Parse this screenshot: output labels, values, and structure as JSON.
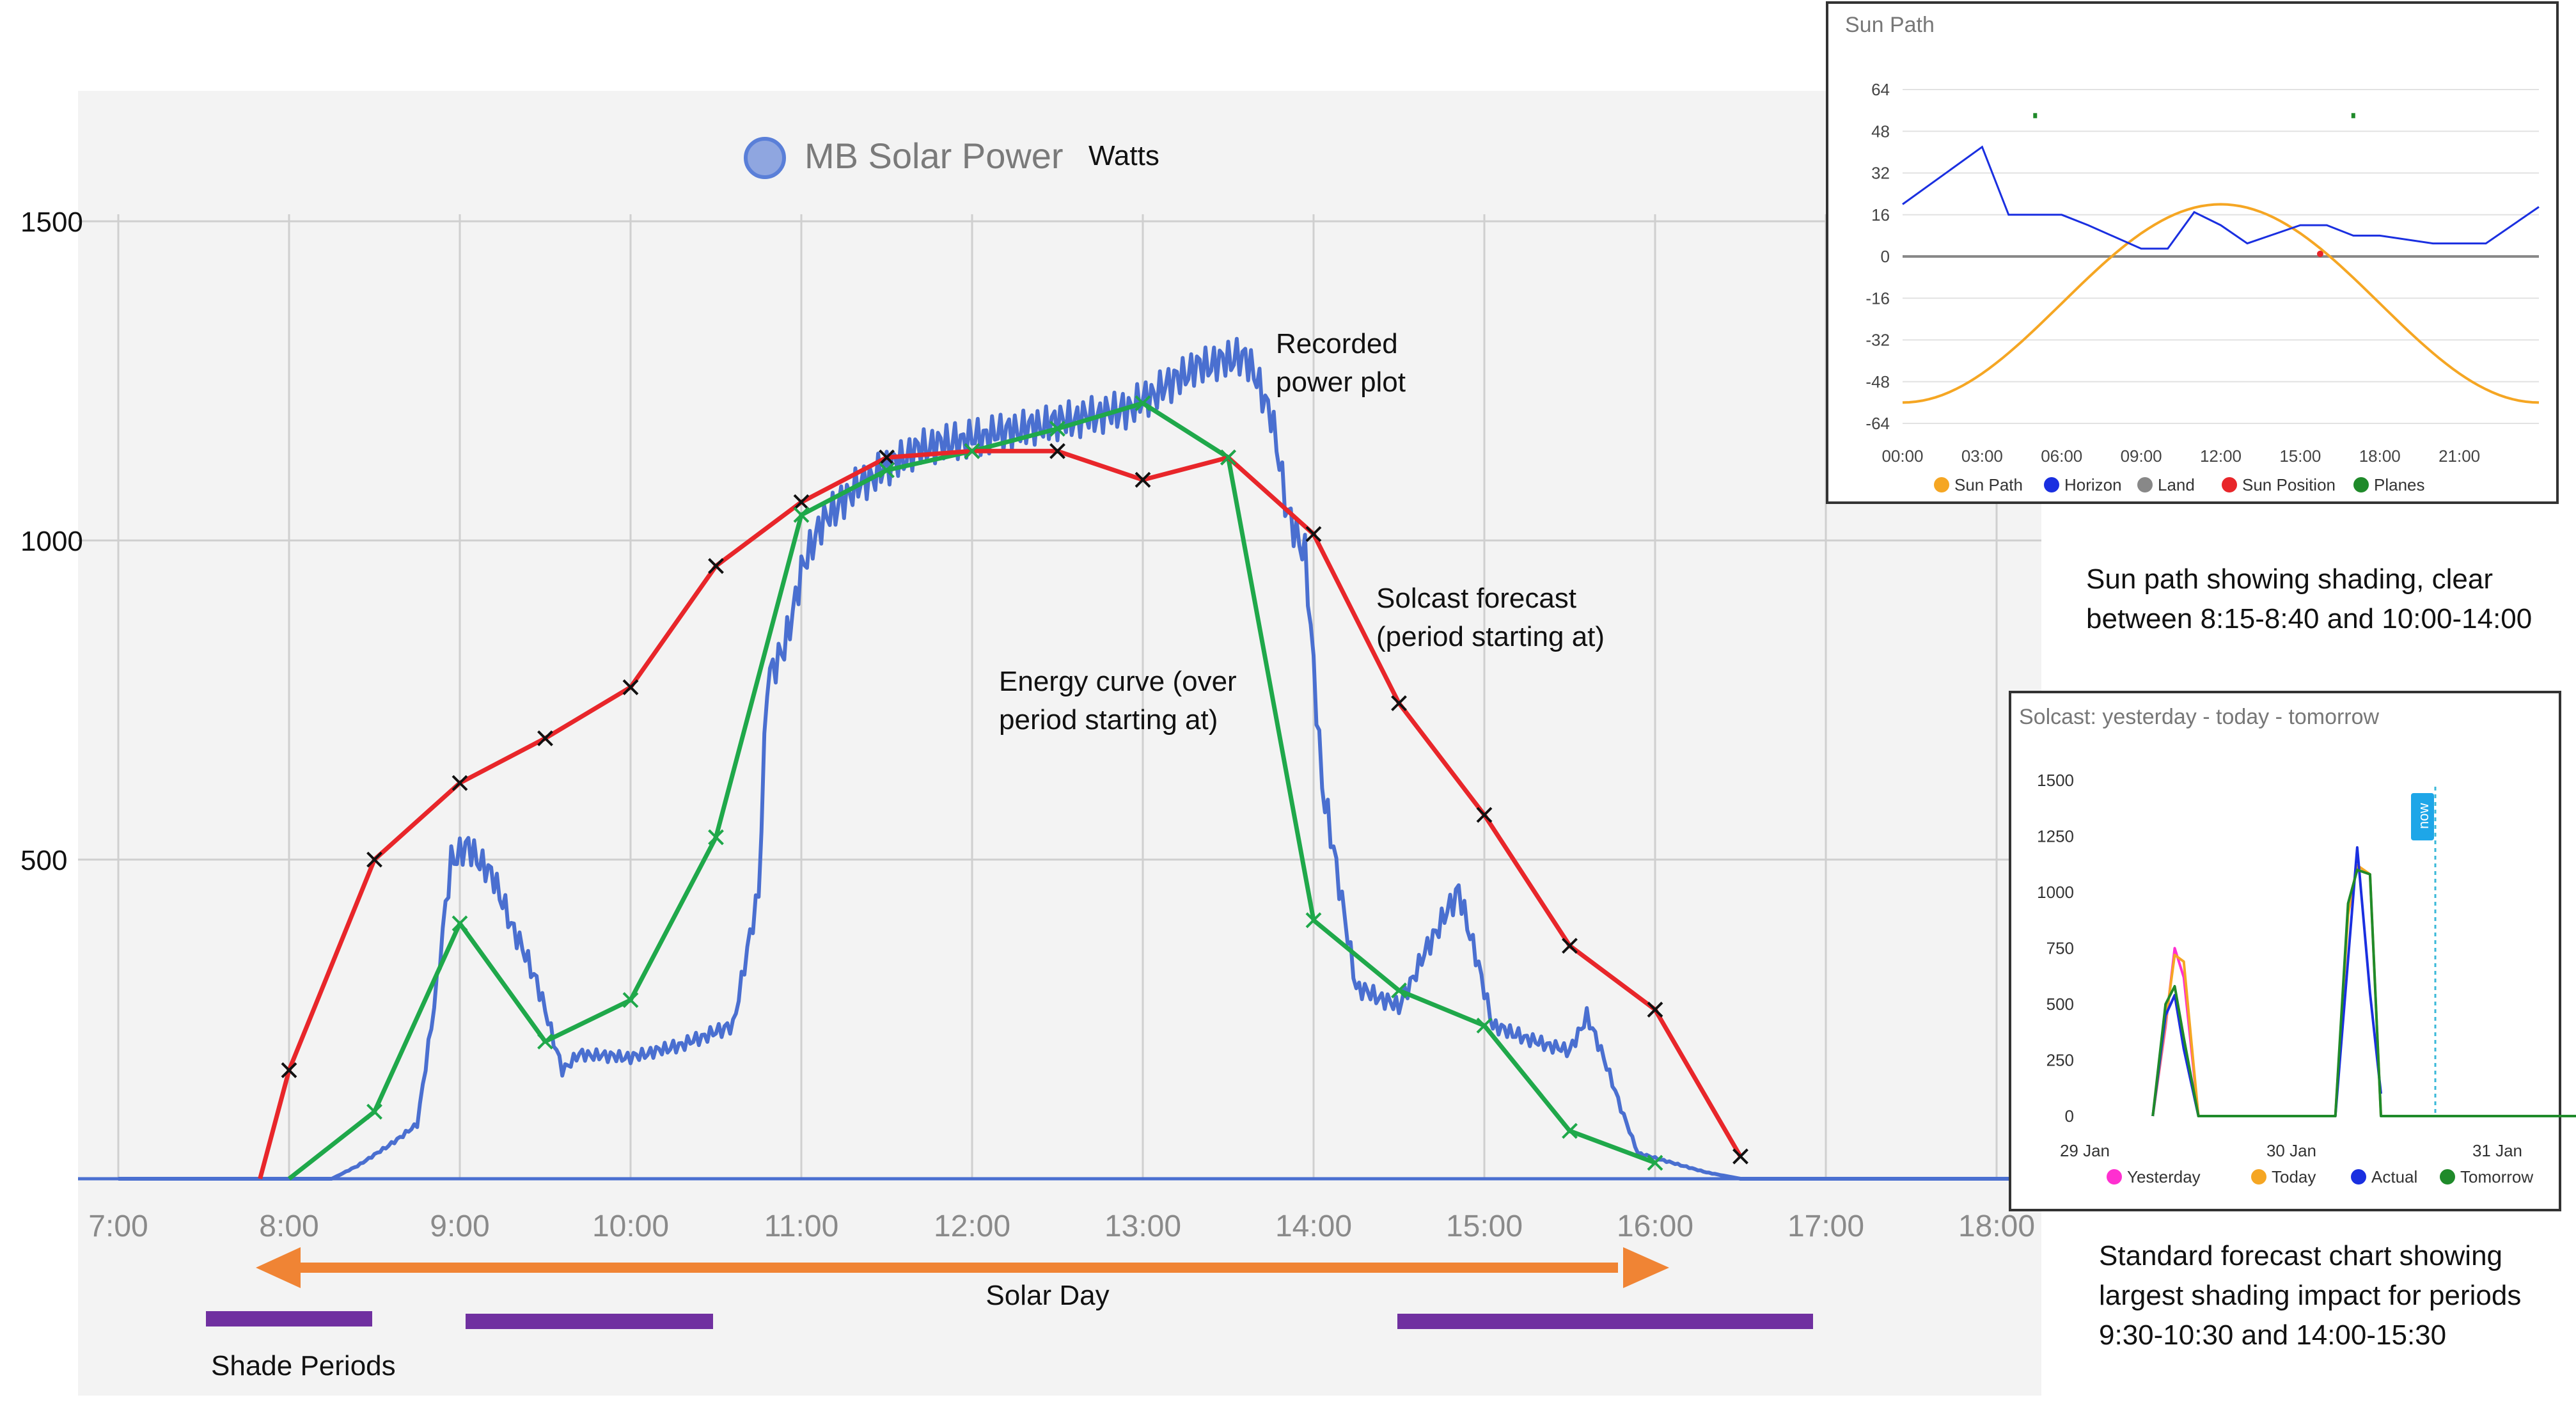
{
  "main_chart": {
    "legend_label": "MB Solar Power",
    "unit_label": "Watts",
    "y_ticks": [
      "1500",
      "1000",
      "500"
    ],
    "x_ticks": [
      "7:00",
      "8:00",
      "9:00",
      "10:00",
      "11:00",
      "12:00",
      "13:00",
      "14:00",
      "15:00",
      "16:00",
      "17:00",
      "18:00"
    ],
    "colors": {
      "recorded": "#4a6fd0",
      "solcast": "#e8262a",
      "energy": "#1fa84a",
      "arrow": "#f08434",
      "shade": "#7030a0",
      "legend_dot": "#8fa6e0"
    }
  },
  "annotations": {
    "recorded": [
      "Recorded",
      "power plot"
    ],
    "solcast": [
      "Solcast forecast",
      "(period starting at)"
    ],
    "energy": [
      "Energy curve (over",
      "period starting at)"
    ],
    "solar_day": "Solar Day",
    "shade_periods": "Shade Periods",
    "sun_path_caption": [
      "Sun path showing shading, clear",
      "between 8:15-8:40 and 10:00-14:00"
    ],
    "forecast_caption": [
      "Standard forecast chart showing",
      "largest shading impact for periods",
      "9:30-10:30 and 14:00-15:30"
    ]
  },
  "sun_path_panel": {
    "title": "Sun Path",
    "y_ticks": [
      "64",
      "48",
      "32",
      "16",
      "0",
      "-16",
      "-32",
      "-48",
      "-64"
    ],
    "x_ticks": [
      "00:00",
      "03:00",
      "06:00",
      "09:00",
      "12:00",
      "15:00",
      "18:00",
      "21:00"
    ],
    "legend": [
      "Sun Path",
      "Horizon",
      "Land",
      "Sun Position",
      "Planes"
    ],
    "colors": [
      "#f5a623",
      "#1a2fe0",
      "#888888",
      "#e8262a",
      "#1f8a2a"
    ]
  },
  "solcast_panel": {
    "title": "Solcast: yesterday - today - tomorrow",
    "y_ticks": [
      "1500",
      "1250",
      "1000",
      "750",
      "500",
      "250",
      "0"
    ],
    "x_ticks": [
      "29 Jan",
      "30 Jan",
      "31 Jan"
    ],
    "now_label": "now",
    "legend": [
      "Yesterday",
      "Today",
      "Actual",
      "Tomorrow"
    ],
    "colors": [
      "#ff2fd0",
      "#f5a623",
      "#1a2fe0",
      "#1f8a2a"
    ]
  },
  "chart_data": [
    {
      "type": "line",
      "title": "MB Solar Power",
      "ylabel": "Watts",
      "ylim": [
        0,
        1600
      ],
      "x_unit": "hour of day",
      "x_range": [
        7,
        18
      ],
      "series": [
        {
          "name": "Solcast forecast (period starting at)",
          "points": [
            [
              7.83,
              0
            ],
            [
              8.0,
              170
            ],
            [
              8.5,
              500
            ],
            [
              9.0,
              620
            ],
            [
              9.5,
              690
            ],
            [
              10.0,
              770
            ],
            [
              10.5,
              960
            ],
            [
              11.0,
              1060
            ],
            [
              11.5,
              1130
            ],
            [
              12.0,
              1140
            ],
            [
              12.5,
              1140
            ],
            [
              13.0,
              1095
            ],
            [
              13.5,
              1130
            ],
            [
              14.0,
              1010
            ],
            [
              14.5,
              745
            ],
            [
              15.0,
              570
            ],
            [
              15.5,
              365
            ],
            [
              16.0,
              265
            ],
            [
              16.5,
              35
            ]
          ]
        },
        {
          "name": "Energy curve (over period starting at)",
          "points": [
            [
              8.0,
              0
            ],
            [
              8.5,
              105
            ],
            [
              9.0,
              400
            ],
            [
              9.5,
              215
            ],
            [
              10.0,
              280
            ],
            [
              10.5,
              535
            ],
            [
              11.0,
              1040
            ],
            [
              11.5,
              1110
            ],
            [
              12.0,
              1140
            ],
            [
              12.5,
              1175
            ],
            [
              13.0,
              1215
            ],
            [
              13.5,
              1130
            ],
            [
              14.0,
              405
            ],
            [
              14.5,
              295
            ],
            [
              15.0,
              240
            ],
            [
              15.5,
              75
            ],
            [
              16.0,
              25
            ]
          ]
        },
        {
          "name": "Recorded power plot",
          "points": [
            [
              7.0,
              0
            ],
            [
              8.25,
              0
            ],
            [
              8.4,
              20
            ],
            [
              8.6,
              55
            ],
            [
              8.75,
              85
            ],
            [
              8.85,
              270
            ],
            [
              8.95,
              500
            ],
            [
              9.05,
              520
            ],
            [
              9.2,
              470
            ],
            [
              9.3,
              400
            ],
            [
              9.45,
              310
            ],
            [
              9.6,
              170
            ],
            [
              9.7,
              195
            ],
            [
              10.0,
              190
            ],
            [
              10.3,
              210
            ],
            [
              10.6,
              240
            ],
            [
              10.75,
              450
            ],
            [
              10.8,
              780
            ],
            [
              10.9,
              830
            ],
            [
              11.0,
              950
            ],
            [
              11.1,
              1020
            ],
            [
              11.3,
              1080
            ],
            [
              11.5,
              1115
            ],
            [
              11.7,
              1145
            ],
            [
              12.0,
              1160
            ],
            [
              12.3,
              1175
            ],
            [
              12.6,
              1190
            ],
            [
              12.9,
              1205
            ],
            [
              13.1,
              1235
            ],
            [
              13.3,
              1270
            ],
            [
              13.6,
              1290
            ],
            [
              13.75,
              1200
            ],
            [
              13.85,
              1040
            ],
            [
              13.95,
              980
            ],
            [
              14.05,
              620
            ],
            [
              14.15,
              460
            ],
            [
              14.25,
              300
            ],
            [
              14.5,
              270
            ],
            [
              14.7,
              380
            ],
            [
              14.85,
              450
            ],
            [
              14.95,
              350
            ],
            [
              15.05,
              240
            ],
            [
              15.3,
              215
            ],
            [
              15.5,
              200
            ],
            [
              15.6,
              255
            ],
            [
              15.7,
              190
            ],
            [
              15.8,
              110
            ],
            [
              15.9,
              40
            ],
            [
              16.1,
              25
            ],
            [
              16.3,
              10
            ],
            [
              16.5,
              0
            ],
            [
              18.2,
              0
            ]
          ]
        }
      ],
      "annotations": {
        "solar_day": [
          7.8,
          16.05
        ],
        "shade_periods": [
          [
            7.5,
            8.5
          ],
          [
            9.05,
            10.5
          ],
          [
            14.5,
            17.0
          ]
        ]
      }
    },
    {
      "type": "line",
      "title": "Sun Path",
      "x_range": [
        0,
        24
      ],
      "ylim": [
        -64,
        64
      ],
      "series": [
        {
          "name": "Sun Path",
          "points": [
            [
              0,
              -56
            ],
            [
              3,
              -48
            ],
            [
              6,
              -16
            ],
            [
              9,
              13
            ],
            [
              11,
              19
            ],
            [
              12,
              20
            ],
            [
              13,
              19
            ],
            [
              15,
              13
            ],
            [
              18,
              -16
            ],
            [
              21,
              -48
            ],
            [
              24,
              -56
            ]
          ]
        },
        {
          "name": "Horizon",
          "points": [
            [
              0,
              20
            ],
            [
              3,
              42
            ],
            [
              4,
              16
            ],
            [
              6,
              16
            ],
            [
              7,
              12
            ],
            [
              9,
              3
            ],
            [
              10,
              3
            ],
            [
              11,
              17
            ],
            [
              12,
              12
            ],
            [
              13,
              5
            ],
            [
              15,
              12
            ],
            [
              16,
              12
            ],
            [
              17,
              8
            ],
            [
              18,
              8
            ],
            [
              20,
              5
            ],
            [
              22,
              5
            ],
            [
              24,
              19
            ]
          ]
        },
        {
          "name": "Land",
          "points": [
            [
              0,
              0
            ],
            [
              24,
              0
            ]
          ]
        },
        {
          "name": "Sun Position",
          "points": [
            [
              15.75,
              1
            ]
          ]
        },
        {
          "name": "Planes",
          "points": [
            [
              5,
              54
            ],
            [
              17,
              54
            ]
          ]
        }
      ]
    },
    {
      "type": "line",
      "title": "Solcast: yesterday - today - tomorrow",
      "x_unit": "day index (0 = 29 Jan)",
      "x_range": [
        0,
        3
      ],
      "ylim": [
        0,
        1500
      ],
      "series": [
        {
          "name": "Yesterday",
          "points": [
            [
              0.33,
              0
            ],
            [
              0.4,
              400
            ],
            [
              0.45,
              750
            ],
            [
              0.5,
              620
            ],
            [
              0.58,
              0
            ]
          ]
        },
        {
          "name": "Today",
          "points": [
            [
              0.33,
              0
            ],
            [
              0.4,
              420
            ],
            [
              0.45,
              720
            ],
            [
              0.5,
              690
            ],
            [
              0.58,
              0
            ],
            [
              1.33,
              0
            ],
            [
              1.4,
              900
            ],
            [
              1.45,
              1120
            ],
            [
              1.52,
              1080
            ],
            [
              1.58,
              0
            ]
          ]
        },
        {
          "name": "Actual",
          "points": [
            [
              0.33,
              0
            ],
            [
              0.4,
              450
            ],
            [
              0.45,
              540
            ],
            [
              0.5,
              300
            ],
            [
              0.58,
              0
            ],
            [
              1.33,
              0
            ],
            [
              1.4,
              700
            ],
            [
              1.45,
              1200
            ],
            [
              1.52,
              550
            ],
            [
              1.58,
              100
            ]
          ]
        },
        {
          "name": "Tomorrow",
          "points": [
            [
              0.33,
              0
            ],
            [
              0.4,
              500
            ],
            [
              0.45,
              580
            ],
            [
              0.5,
              350
            ],
            [
              0.58,
              0
            ],
            [
              1.33,
              0
            ],
            [
              1.4,
              950
            ],
            [
              1.45,
              1100
            ],
            [
              1.52,
              1080
            ],
            [
              1.58,
              0
            ],
            [
              3.0,
              0
            ]
          ]
        }
      ]
    }
  ]
}
